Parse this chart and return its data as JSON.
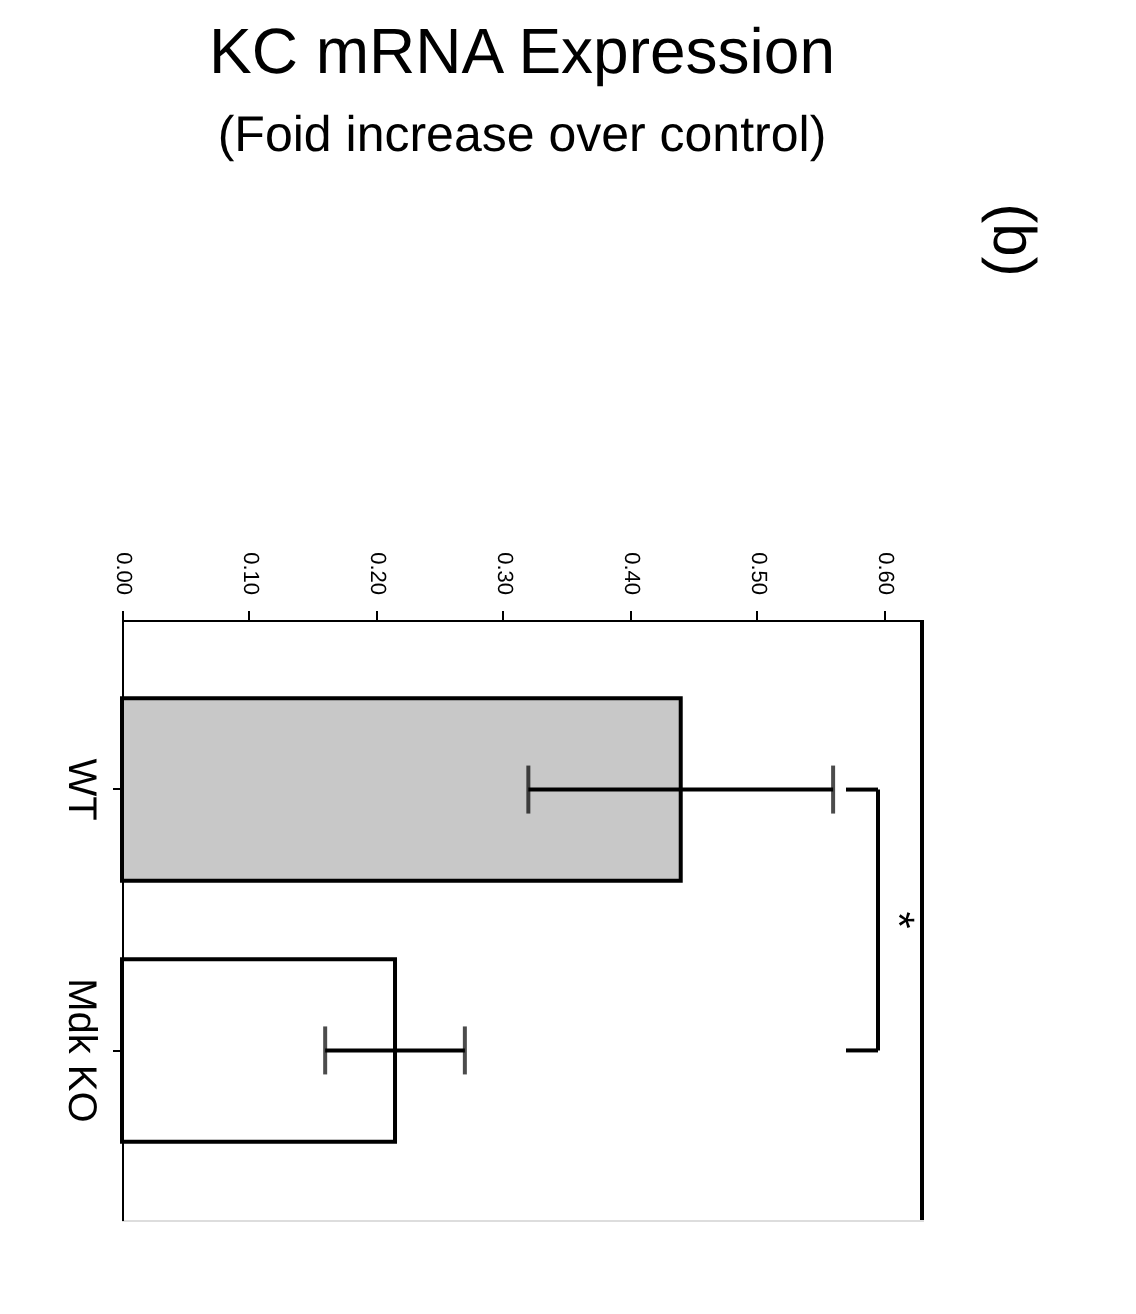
{
  "chart_data": {
    "type": "bar",
    "orientation": "horizontal",
    "title": "KC mRNA Expression",
    "subtitle": "(Foid increase over control)",
    "categories": [
      "WT",
      "Mdk KO"
    ],
    "values": [
      0.44,
      0.215
    ],
    "errors": [
      0.12,
      0.055
    ],
    "colors": [
      "#c8c8c8",
      "#ffffff"
    ],
    "xlim": [
      0,
      0.63
    ],
    "xticks": [
      {
        "value": 0,
        "label": "0.00"
      },
      {
        "value": 0.1,
        "label": "0.10"
      },
      {
        "value": 0.2,
        "label": "0.20"
      },
      {
        "value": 0.3,
        "label": "0.30"
      },
      {
        "value": 0.4,
        "label": "0.40"
      },
      {
        "value": 0.5,
        "label": "0.50"
      },
      {
        "value": 0.6,
        "label": "0.60"
      }
    ],
    "grid": false,
    "annotations": [
      "*",
      "(b)"
    ]
  }
}
